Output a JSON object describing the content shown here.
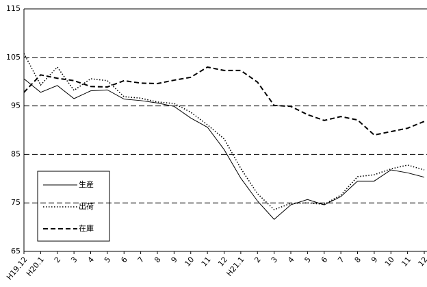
{
  "chart_data": {
    "type": "line",
    "categories": [
      "H19.12",
      "H20.1",
      "2",
      "3",
      "4",
      "5",
      "6",
      "7",
      "8",
      "9",
      "10",
      "11",
      "12",
      "H21.1",
      "2",
      "3",
      "4",
      "5",
      "6",
      "7",
      "8",
      "9",
      "10",
      "11",
      "12"
    ],
    "series": [
      {
        "name": "生産",
        "color": "#000000",
        "dash": "solid",
        "values": [
          100.6,
          97.8,
          99.2,
          96.5,
          98.1,
          98.3,
          96.4,
          96.1,
          95.6,
          94.9,
          92.5,
          90.6,
          86.0,
          80.1,
          75.4,
          71.6,
          74.6,
          75.7,
          74.6,
          76.3,
          79.5,
          79.5,
          81.8,
          81.2,
          80.3
        ]
      },
      {
        "name": "出荷",
        "color": "#000000",
        "dash": "dotted",
        "values": [
          105.8,
          99.3,
          103.0,
          98.2,
          100.6,
          100.2,
          96.9,
          96.6,
          95.8,
          95.5,
          93.7,
          91.1,
          88.2,
          82.1,
          76.9,
          73.6,
          74.9,
          75.0,
          74.7,
          76.6,
          80.4,
          80.8,
          82.0,
          82.8,
          81.8
        ]
      },
      {
        "name": "在庫",
        "color": "#000000",
        "dash": "dashed",
        "values": [
          97.8,
          101.4,
          100.7,
          100.2,
          99.0,
          98.9,
          100.2,
          99.7,
          99.6,
          100.3,
          100.9,
          103.0,
          102.3,
          102.3,
          99.9,
          95.1,
          94.9,
          93.2,
          92.0,
          92.8,
          92.1,
          89.0,
          89.7,
          90.4,
          91.8
        ]
      }
    ],
    "ylim": [
      65,
      115
    ],
    "yticks": [
      65,
      75,
      85,
      95,
      105,
      115
    ],
    "grid": true
  }
}
